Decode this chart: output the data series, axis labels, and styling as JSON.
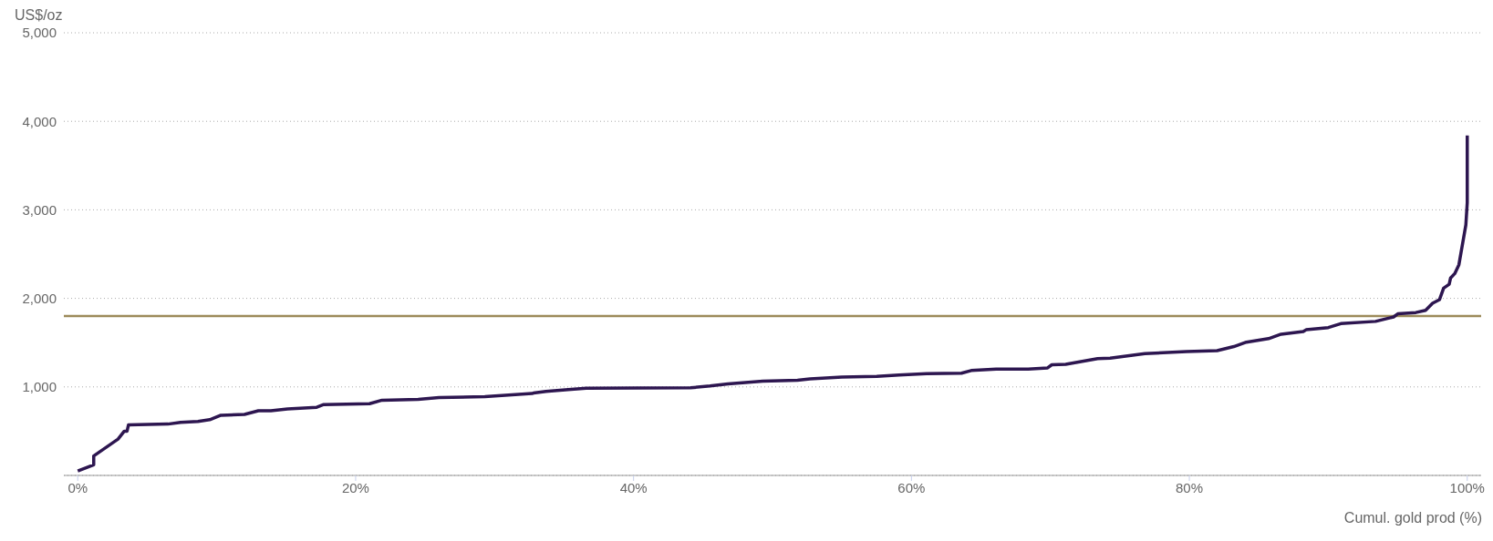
{
  "chart_data": {
    "type": "line",
    "ylabel": "US$/oz",
    "xlabel": "Cumul. gold prod (%)",
    "x": [
      0,
      1.15,
      1.15,
      2.9,
      3.35,
      3.55,
      3.65,
      6.5,
      7.4,
      8.65,
      9.5,
      10.3,
      12.0,
      13.0,
      13.9,
      15.1,
      17.2,
      17.7,
      21.0,
      21.9,
      24.5,
      26.0,
      29.3,
      32.7,
      32.8,
      33.7,
      35.3,
      36.6,
      44.1,
      45.5,
      46.8,
      49.3,
      51.8,
      52.7,
      55.0,
      57.5,
      59.1,
      61.1,
      63.6,
      64.3,
      66.1,
      68.4,
      69.8,
      70.1,
      71.1,
      73.4,
      74.3,
      76.8,
      79.8,
      82.0,
      83.2,
      84.1,
      85.7,
      86.6,
      88.2,
      88.4,
      90.0,
      90.9,
      93.4,
      94.7,
      95.0,
      96.3,
      97.0,
      97.5,
      98.0,
      98.3,
      98.7,
      98.8,
      99.1,
      99.4,
      99.9,
      100,
      100
    ],
    "series": [
      {
        "color": "#2d1650",
        "values": [
          50,
          120,
          220,
          410,
          500,
          500,
          570,
          580,
          600,
          610,
          630,
          680,
          690,
          730,
          730,
          750,
          770,
          800,
          810,
          850,
          860,
          880,
          890,
          925,
          930,
          950,
          970,
          985,
          990,
          1010,
          1035,
          1065,
          1075,
          1090,
          1110,
          1120,
          1135,
          1150,
          1155,
          1185,
          1200,
          1200,
          1215,
          1250,
          1255,
          1320,
          1325,
          1375,
          1400,
          1410,
          1455,
          1505,
          1545,
          1595,
          1625,
          1645,
          1670,
          1715,
          1740,
          1790,
          1825,
          1840,
          1865,
          1945,
          1985,
          2115,
          2160,
          2230,
          2280,
          2380,
          2830,
          3080,
          3840
        ]
      }
    ],
    "xlim": [
      -1,
      101
    ],
    "xticks": [
      {
        "value": 0,
        "label": "0%"
      },
      {
        "value": 20,
        "label": "20%"
      },
      {
        "value": 40,
        "label": "40%"
      },
      {
        "value": 60,
        "label": "60%"
      },
      {
        "value": 80,
        "label": "80%"
      },
      {
        "value": 100,
        "label": "100%"
      }
    ],
    "ylim": [
      0,
      5000
    ],
    "yticks": [
      {
        "value": 1000,
        "label": "1,000"
      },
      {
        "value": 2000,
        "label": "2,000"
      },
      {
        "value": 3000,
        "label": "3,000"
      },
      {
        "value": 4000,
        "label": "4,000"
      },
      {
        "value": 5000,
        "label": "5,000"
      }
    ],
    "grid": "y",
    "legend": false,
    "marker": "none",
    "line_style": "solid",
    "ref_lines": [
      {
        "axis": "y",
        "value": 1800,
        "color": "#9c8a5a"
      }
    ]
  }
}
